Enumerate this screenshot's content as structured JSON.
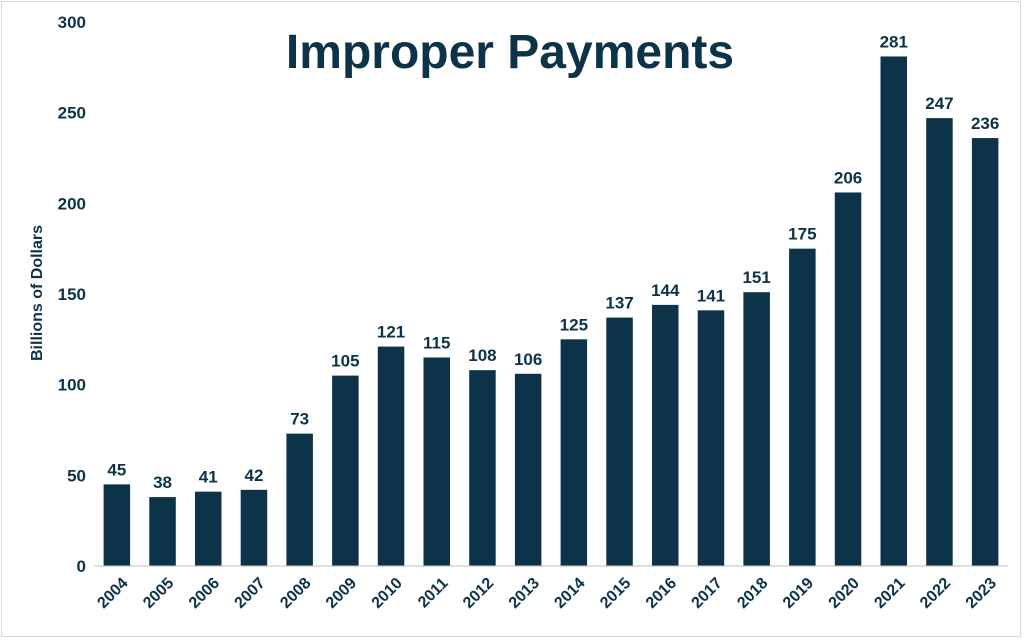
{
  "chart_data": {
    "type": "bar",
    "title": "Improper Payments",
    "xlabel": "",
    "ylabel": "Billions of Dollars",
    "ylim": [
      0,
      300
    ],
    "yticks": [
      0,
      50,
      100,
      150,
      200,
      250,
      300
    ],
    "grid": false,
    "bar_color": "#0d3349",
    "categories": [
      "2004",
      "2005",
      "2006",
      "2007",
      "2008",
      "2009",
      "2010",
      "2011",
      "2012",
      "2013",
      "2014",
      "2015",
      "2016",
      "2017",
      "2018",
      "2019",
      "2020",
      "2021",
      "2022",
      "2023"
    ],
    "values": [
      45,
      38,
      41,
      42,
      73,
      105,
      121,
      115,
      108,
      106,
      125,
      137,
      144,
      141,
      151,
      175,
      206,
      281,
      247,
      236
    ]
  }
}
